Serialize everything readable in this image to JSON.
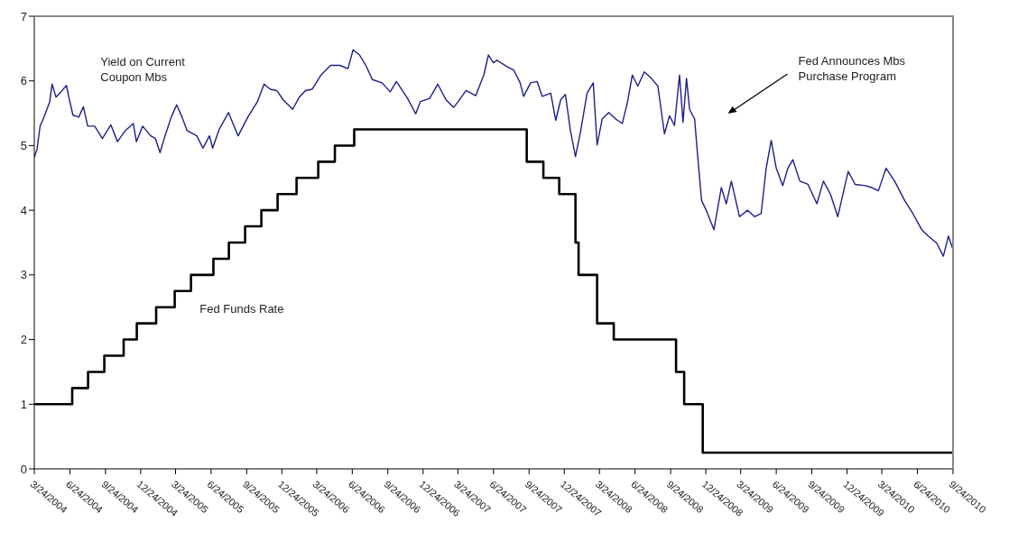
{
  "chart_data": {
    "type": "line",
    "annotations": [
      "Fed Announces Mbs Purchase Program"
    ],
    "xlim": [
      "2004-03-24",
      "2010-09-24"
    ],
    "xticks": [
      {
        "value": "2004-03-24",
        "label": "3/24/2004"
      },
      {
        "value": "2004-06-24",
        "label": "6/24/2004"
      },
      {
        "value": "2004-09-24",
        "label": "9/24/2004"
      },
      {
        "value": "2004-12-24",
        "label": "12/24/2004"
      },
      {
        "value": "2005-03-24",
        "label": "3/24/2005"
      },
      {
        "value": "2005-06-24",
        "label": "6/24/2005"
      },
      {
        "value": "2005-09-24",
        "label": "9/24/2005"
      },
      {
        "value": "2005-12-24",
        "label": "12/24/2005"
      },
      {
        "value": "2006-03-24",
        "label": "3/24/2006"
      },
      {
        "value": "2006-06-24",
        "label": "6/24/2006"
      },
      {
        "value": "2006-09-24",
        "label": "9/24/2006"
      },
      {
        "value": "2006-12-24",
        "label": "12/24/2006"
      },
      {
        "value": "2007-03-24",
        "label": "3/24/2007"
      },
      {
        "value": "2007-06-24",
        "label": "6/24/2007"
      },
      {
        "value": "2007-09-24",
        "label": "9/24/2007"
      },
      {
        "value": "2007-12-24",
        "label": "12/24/2007"
      },
      {
        "value": "2008-03-24",
        "label": "3/24/2008"
      },
      {
        "value": "2008-06-24",
        "label": "6/24/2008"
      },
      {
        "value": "2008-09-24",
        "label": "9/24/2008"
      },
      {
        "value": "2008-12-24",
        "label": "12/24/2008"
      },
      {
        "value": "2009-03-24",
        "label": "3/24/2009"
      },
      {
        "value": "2009-06-24",
        "label": "6/24/2009"
      },
      {
        "value": "2009-09-24",
        "label": "9/24/2009"
      },
      {
        "value": "2009-12-24",
        "label": "12/24/2009"
      },
      {
        "value": "2010-03-24",
        "label": "3/24/2010"
      },
      {
        "value": "2010-06-24",
        "label": "6/24/2010"
      },
      {
        "value": "2010-09-24",
        "label": "9/24/2010"
      }
    ],
    "ylim": [
      0,
      7
    ],
    "yticks": [
      0,
      1,
      2,
      3,
      4,
      5,
      6,
      7
    ],
    "series": [
      {
        "name": "Yield on Current Coupon Mbs",
        "color": "#1c1f8a",
        "x": [
          "2004-03-24",
          "2004-03-31",
          "2004-04-08",
          "2004-04-20",
          "2004-05-03",
          "2004-05-09",
          "2004-05-19",
          "2004-06-01",
          "2004-06-15",
          "2004-06-22",
          "2004-07-02",
          "2004-07-17",
          "2004-07-29",
          "2004-08-09",
          "2004-08-27",
          "2004-09-16",
          "2004-10-08",
          "2004-10-25",
          "2004-11-14",
          "2004-12-05",
          "2004-12-13",
          "2004-12-29",
          "2005-01-19",
          "2005-01-31",
          "2005-02-12",
          "2005-02-25",
          "2005-03-13",
          "2005-03-27",
          "2005-04-10",
          "2005-04-23",
          "2005-05-18",
          "2005-06-03",
          "2005-06-20",
          "2005-06-28",
          "2005-07-15",
          "2005-08-08",
          "2005-08-21",
          "2005-09-02",
          "2005-09-27",
          "2005-10-22",
          "2005-11-08",
          "2005-11-24",
          "2005-12-11",
          "2005-12-27",
          "2006-01-21",
          "2006-02-07",
          "2006-02-23",
          "2006-03-12",
          "2006-04-04",
          "2006-04-29",
          "2006-05-23",
          "2006-06-13",
          "2006-06-26",
          "2006-07-13",
          "2006-07-29",
          "2006-08-15",
          "2006-09-09",
          "2006-09-30",
          "2006-10-16",
          "2006-11-14",
          "2006-12-05",
          "2006-12-17",
          "2007-01-10",
          "2007-01-31",
          "2007-02-21",
          "2007-03-13",
          "2007-03-25",
          "2007-04-14",
          "2007-05-09",
          "2007-05-30",
          "2007-06-11",
          "2007-06-24",
          "2007-07-03",
          "2007-07-29",
          "2007-08-15",
          "2007-09-01",
          "2007-09-10",
          "2007-09-28",
          "2007-10-15",
          "2007-10-28",
          "2007-11-19",
          "2007-12-02",
          "2007-12-15",
          "2007-12-27",
          "2008-01-09",
          "2008-01-22",
          "2008-02-04",
          "2008-02-21",
          "2008-03-08",
          "2008-03-18",
          "2008-03-31",
          "2008-04-17",
          "2008-05-05",
          "2008-05-22",
          "2008-06-04",
          "2008-06-17",
          "2008-07-01",
          "2008-07-18",
          "2008-08-05",
          "2008-08-22",
          "2008-09-08",
          "2008-09-21",
          "2008-10-04",
          "2008-10-17",
          "2008-10-26",
          "2008-11-04",
          "2008-11-12",
          "2008-11-25",
          "2008-12-04",
          "2008-12-13",
          "2008-12-25",
          "2009-01-14",
          "2009-02-02",
          "2009-02-15",
          "2009-02-28",
          "2009-03-21",
          "2009-04-11",
          "2009-04-29",
          "2009-05-16",
          "2009-05-29",
          "2009-06-11",
          "2009-06-24",
          "2009-07-11",
          "2009-07-24",
          "2009-08-06",
          "2009-08-24",
          "2009-09-14",
          "2009-10-07",
          "2009-10-24",
          "2009-11-11",
          "2009-11-30",
          "2009-12-27",
          "2010-01-14",
          "2010-02-09",
          "2010-02-26",
          "2010-03-15",
          "2010-04-04",
          "2010-04-26",
          "2010-05-22",
          "2010-06-12",
          "2010-07-05",
          "2010-07-22",
          "2010-08-13",
          "2010-08-30",
          "2010-09-12",
          "2010-09-24"
        ],
        "values": [
          4.82,
          4.94,
          5.3,
          5.47,
          5.68,
          5.95,
          5.75,
          5.83,
          5.93,
          5.73,
          5.47,
          5.44,
          5.6,
          5.3,
          5.3,
          5.11,
          5.32,
          5.06,
          5.23,
          5.34,
          5.06,
          5.3,
          5.15,
          5.11,
          4.89,
          5.15,
          5.44,
          5.63,
          5.44,
          5.23,
          5.15,
          4.96,
          5.15,
          4.96,
          5.25,
          5.51,
          5.32,
          5.15,
          5.44,
          5.68,
          5.95,
          5.87,
          5.85,
          5.71,
          5.56,
          5.75,
          5.85,
          5.87,
          6.09,
          6.24,
          6.24,
          6.19,
          6.48,
          6.4,
          6.24,
          6.02,
          5.97,
          5.83,
          5.99,
          5.73,
          5.49,
          5.68,
          5.73,
          5.95,
          5.71,
          5.59,
          5.68,
          5.85,
          5.77,
          6.09,
          6.4,
          6.28,
          6.32,
          6.22,
          6.17,
          5.97,
          5.76,
          5.97,
          5.99,
          5.76,
          5.81,
          5.39,
          5.71,
          5.79,
          5.23,
          4.83,
          5.21,
          5.81,
          5.97,
          5.01,
          5.41,
          5.51,
          5.41,
          5.34,
          5.66,
          6.09,
          5.92,
          6.14,
          6.04,
          5.92,
          5.18,
          5.46,
          5.31,
          6.09,
          5.36,
          6.04,
          5.56,
          5.41,
          4.76,
          4.15,
          4.0,
          3.7,
          4.35,
          4.1,
          4.45,
          3.9,
          4.0,
          3.9,
          3.95,
          4.65,
          5.08,
          4.65,
          4.38,
          4.65,
          4.78,
          4.45,
          4.4,
          4.1,
          4.45,
          4.25,
          3.9,
          4.6,
          4.4,
          4.38,
          4.35,
          4.3,
          4.65,
          4.45,
          4.15,
          3.95,
          3.7,
          3.6,
          3.49,
          3.29,
          3.6,
          3.39
        ]
      },
      {
        "name": "Fed Funds Rate",
        "type": "step",
        "color": "#000000",
        "x": [
          "2004-03-24",
          "2004-06-30",
          "2004-08-10",
          "2004-09-21",
          "2004-11-10",
          "2004-12-14",
          "2005-02-02",
          "2005-03-22",
          "2005-05-03",
          "2005-06-30",
          "2005-08-09",
          "2005-09-20",
          "2005-11-01",
          "2005-12-13",
          "2006-01-31",
          "2006-03-28",
          "2006-05-10",
          "2006-06-29",
          "2007-09-18",
          "2007-10-31",
          "2007-12-11",
          "2008-01-22",
          "2008-01-30",
          "2008-03-18",
          "2008-04-30",
          "2008-10-08",
          "2008-10-29",
          "2008-12-16",
          "2010-09-24"
        ],
        "values": [
          1.0,
          1.25,
          1.5,
          1.75,
          2.0,
          2.25,
          2.5,
          2.75,
          3.0,
          3.25,
          3.5,
          3.75,
          4.0,
          4.25,
          4.5,
          4.75,
          5.0,
          5.25,
          4.75,
          4.5,
          4.25,
          3.5,
          3.0,
          2.25,
          2.0,
          1.5,
          1.0,
          0.25,
          0.25
        ]
      }
    ]
  }
}
